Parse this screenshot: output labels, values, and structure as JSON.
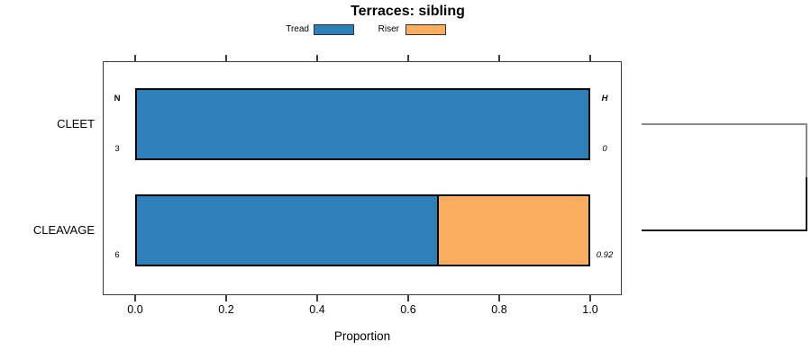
{
  "title": "Terraces: sibling",
  "colors": {
    "tread": "#2E81B8",
    "riser": "#FBAD60",
    "bracket_upper": "#8a8a8a",
    "bracket_lower": "#1a1a1a",
    "bar_border": "#000000",
    "box_border": "#3d3d3d"
  },
  "chart_data": {
    "type": "bar",
    "orientation": "horizontal",
    "stacked": true,
    "title": "Terraces: sibling",
    "xlabel": "Proportion",
    "xlim": [
      0,
      1
    ],
    "xticks": [
      0.0,
      0.2,
      0.4,
      0.6,
      0.8,
      1.0
    ],
    "xtick_labels": [
      "0.0",
      "0.2",
      "0.4",
      "0.6",
      "0.8",
      "1.0"
    ],
    "categories": [
      "CLEET",
      "CLEAVAGE"
    ],
    "series": [
      {
        "name": "Tread",
        "color": "#2E81B8",
        "values": [
          1.0,
          0.667
        ]
      },
      {
        "name": "Riser",
        "color": "#FBAD60",
        "values": [
          0.0,
          0.333
        ]
      }
    ],
    "legend_position": "top",
    "grid": false,
    "row_annotations": {
      "left_header": "N",
      "left_values": [
        "3",
        "6"
      ],
      "right_header": "H",
      "right_values": [
        "0",
        "0.92"
      ]
    },
    "linkage_bracket": {
      "connects": [
        "CLEET",
        "CLEAVAGE"
      ]
    }
  }
}
